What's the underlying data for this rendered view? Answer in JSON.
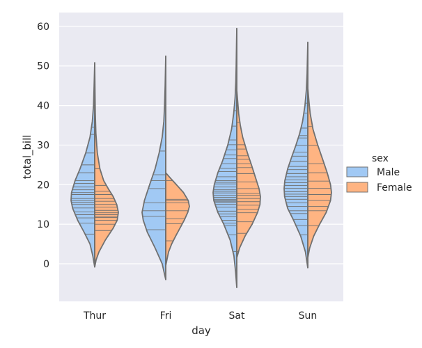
{
  "chart_data": {
    "type": "violin",
    "xlabel": "day",
    "ylabel": "total_bill",
    "categories": [
      "Thur",
      "Fri",
      "Sat",
      "Sun"
    ],
    "yticks": [
      0,
      10,
      20,
      30,
      40,
      50,
      60
    ],
    "ylim": [
      -9.5,
      63.5
    ],
    "grid": true,
    "legend": {
      "title": "sex",
      "placement": "center-right",
      "entries": [
        "Male",
        "Female"
      ]
    },
    "series": [
      {
        "name": "Male",
        "color": "#a1c9f4",
        "violins": [
          {
            "category": "Thur",
            "range": [
              -0.8,
              50.8
            ],
            "profile": [
              [
                -0.8,
                0.0
              ],
              [
                2,
                0.08
              ],
              [
                5,
                0.2
              ],
              [
                8,
                0.45
              ],
              [
                11,
                0.72
              ],
              [
                14,
                0.93
              ],
              [
                16,
                1.0
              ],
              [
                18,
                0.98
              ],
              [
                21,
                0.83
              ],
              [
                24,
                0.62
              ],
              [
                28,
                0.38
              ],
              [
                32,
                0.2
              ],
              [
                36,
                0.1
              ],
              [
                40,
                0.05
              ],
              [
                45,
                0.025
              ],
              [
                50.8,
                0.0
              ]
            ],
            "obs": [
              7.5,
              10.3,
              11.6,
              12.4,
              13.1,
              14.1,
              15.0,
              15.5,
              16.0,
              16.5,
              17.5,
              18.0,
              18.7,
              19.4,
              20.3,
              21.0,
              23.0,
              25.0,
              28.0,
              32.7,
              34.5,
              41.2,
              43.1,
              48.2
            ]
          },
          {
            "category": "Fri",
            "range": [
              -4.0,
              52.5
            ],
            "profile": [
              [
                -4.0,
                0.0
              ],
              [
                0,
                0.15
              ],
              [
                4,
                0.45
              ],
              [
                8,
                0.78
              ],
              [
                11,
                0.95
              ],
              [
                13,
                1.0
              ],
              [
                16,
                0.9
              ],
              [
                20,
                0.68
              ],
              [
                24,
                0.45
              ],
              [
                28,
                0.28
              ],
              [
                32,
                0.15
              ],
              [
                36,
                0.08
              ],
              [
                40,
                0.05
              ],
              [
                45,
                0.025
              ],
              [
                52.5,
                0.0
              ]
            ],
            "obs": [
              8.6,
              12.0,
              13.4,
              15.4,
              19.0,
              21.0,
              22.5,
              28.5,
              40.2
            ]
          },
          {
            "category": "Sat",
            "range": [
              -6.0,
              59.5
            ],
            "profile": [
              [
                -6.0,
                0.0
              ],
              [
                -2,
                0.05
              ],
              [
                2,
                0.12
              ],
              [
                6,
                0.28
              ],
              [
                10,
                0.55
              ],
              [
                13,
                0.8
              ],
              [
                16,
                0.97
              ],
              [
                18,
                1.0
              ],
              [
                20,
                0.95
              ],
              [
                23,
                0.8
              ],
              [
                26,
                0.6
              ],
              [
                30,
                0.38
              ],
              [
                34,
                0.22
              ],
              [
                38,
                0.13
              ],
              [
                42,
                0.07
              ],
              [
                46,
                0.04
              ],
              [
                50,
                0.025
              ],
              [
                55,
                0.012
              ],
              [
                59.5,
                0.0
              ]
            ],
            "obs": [
              3.1,
              7.3,
              9.6,
              10.3,
              11.0,
              11.9,
              12.6,
              13.3,
              14.3,
              15.0,
              15.5,
              15.8,
              16.0,
              16.3,
              16.8,
              17.3,
              17.9,
              18.3,
              18.7,
              19.4,
              20.2,
              20.6,
              21.0,
              22.0,
              23.3,
              24.1,
              25.3,
              26.6,
              27.5,
              28.8,
              30.1,
              31.3,
              34.8,
              38.7,
              44.3,
              48.3,
              50.8
            ]
          },
          {
            "category": "Sun",
            "range": [
              -1.0,
              56.0
            ],
            "profile": [
              [
                -1.0,
                0.0
              ],
              [
                3,
                0.1
              ],
              [
                7,
                0.3
              ],
              [
                11,
                0.6
              ],
              [
                14,
                0.85
              ],
              [
                17,
                0.98
              ],
              [
                19,
                1.0
              ],
              [
                21,
                0.97
              ],
              [
                24,
                0.85
              ],
              [
                27,
                0.68
              ],
              [
                30,
                0.5
              ],
              [
                33,
                0.34
              ],
              [
                36,
                0.22
              ],
              [
                40,
                0.12
              ],
              [
                44,
                0.06
              ],
              [
                48,
                0.03
              ],
              [
                52,
                0.015
              ],
              [
                56,
                0.0
              ]
            ],
            "obs": [
              7.3,
              9.6,
              11.2,
              12.7,
              13.4,
              14.5,
              15.4,
              16.3,
              17.0,
              17.6,
              18.2,
              19.1,
              19.8,
              20.5,
              21.2,
              22.0,
              22.8,
              23.8,
              24.6,
              25.9,
              27.2,
              28.2,
              29.9,
              31.8,
              32.4,
              34.3,
              38.1,
              40.6,
              45.4,
              48.2
            ]
          }
        ]
      },
      {
        "name": "Female",
        "color": "#ffb482",
        "violins": [
          {
            "category": "Thur",
            "range": [
              -0.8,
              50.8
            ],
            "profile": [
              [
                -0.8,
                0.0
              ],
              [
                1,
                0.06
              ],
              [
                3,
                0.18
              ],
              [
                6,
                0.45
              ],
              [
                9,
                0.78
              ],
              [
                11,
                0.95
              ],
              [
                13,
                1.0
              ],
              [
                15,
                0.93
              ],
              [
                17,
                0.78
              ],
              [
                19,
                0.57
              ],
              [
                21,
                0.38
              ],
              [
                24,
                0.22
              ],
              [
                28,
                0.11
              ],
              [
                33,
                0.05
              ],
              [
                38,
                0.025
              ],
              [
                44,
                0.012
              ],
              [
                50.8,
                0.0
              ]
            ],
            "obs": [
              8.4,
              10.0,
              11.0,
              11.7,
              12.0,
              12.4,
              12.9,
              13.5,
              14.3,
              15.0,
              15.8,
              16.5,
              17.5,
              18.3,
              19.8,
              24.0,
              32.7,
              43.1
            ]
          },
          {
            "category": "Fri",
            "range": [
              -0.5,
              23.0
            ],
            "profile": [
              [
                -0.5,
                0.0
              ],
              [
                1,
                0.05
              ],
              [
                3,
                0.12
              ],
              [
                5,
                0.25
              ],
              [
                7,
                0.42
              ],
              [
                9,
                0.6
              ],
              [
                11,
                0.78
              ],
              [
                13,
                0.93
              ],
              [
                14.5,
                1.0
              ],
              [
                16,
                0.95
              ],
              [
                18,
                0.75
              ],
              [
                20,
                0.45
              ],
              [
                21.5,
                0.22
              ],
              [
                23,
                0.0
              ]
            ],
            "obs": [
              5.8,
              10.1,
              11.4,
              13.4,
              15.4,
              16.0,
              16.3,
              21.0,
              22.5
            ]
          },
          {
            "category": "Sat",
            "range": [
              1.5,
              44.0
            ],
            "profile": [
              [
                1.5,
                0.0
              ],
              [
                4,
                0.12
              ],
              [
                7,
                0.35
              ],
              [
                10,
                0.65
              ],
              [
                13,
                0.88
              ],
              [
                15,
                0.98
              ],
              [
                17,
                1.0
              ],
              [
                19,
                0.94
              ],
              [
                22,
                0.78
              ],
              [
                25,
                0.62
              ],
              [
                28,
                0.45
              ],
              [
                32,
                0.25
              ],
              [
                35,
                0.15
              ],
              [
                38,
                0.08
              ],
              [
                41,
                0.04
              ],
              [
                44,
                0.0
              ]
            ],
            "obs": [
              3.1,
              7.7,
              10.6,
              12.9,
              13.8,
              14.8,
              15.7,
              16.5,
              17.3,
              17.8,
              19.0,
              20.7,
              22.8,
              24.3,
              25.3,
              26.4,
              27.3,
              29.0,
              30.1,
              35.8
            ]
          },
          {
            "category": "Sun",
            "range": [
              1.5,
              44.5
            ],
            "profile": [
              [
                1.5,
                0.0
              ],
              [
                4,
                0.08
              ],
              [
                7,
                0.25
              ],
              [
                10,
                0.5
              ],
              [
                13,
                0.78
              ],
              [
                16,
                0.96
              ],
              [
                18,
                1.0
              ],
              [
                20,
                0.96
              ],
              [
                23,
                0.82
              ],
              [
                26,
                0.65
              ],
              [
                30,
                0.42
              ],
              [
                34,
                0.22
              ],
              [
                38,
                0.1
              ],
              [
                41,
                0.05
              ],
              [
                44.5,
                0.0
              ]
            ],
            "obs": [
              9.6,
              13.4,
              14.5,
              16.0,
              17.5,
              19.1,
              20.9,
              23.0,
              25.3,
              29.9,
              34.7
            ]
          }
        ]
      }
    ]
  }
}
